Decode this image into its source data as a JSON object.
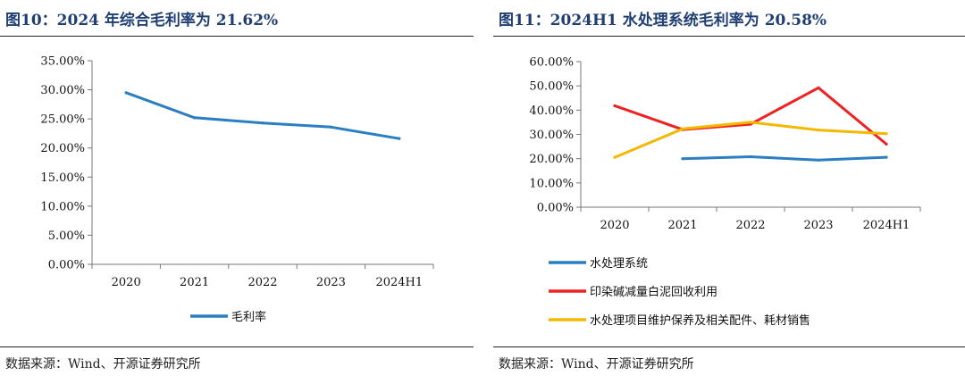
{
  "charts": [
    {
      "title": "图10：2024 年综合毛利率为 21.62%",
      "source": "数据来源：Wind、开源证券研究所"
    },
    {
      "title": "图11：2024H1 水处理系统毛利率为 20.58%",
      "source": "数据来源：Wind、开源证券研究所"
    }
  ],
  "chart_data": [
    {
      "type": "line",
      "categories": [
        "2020",
        "2021",
        "2022",
        "2023",
        "2024H1"
      ],
      "series": [
        {
          "name": "毛利率",
          "values": [
            29.5,
            25.2,
            24.3,
            23.6,
            21.62
          ],
          "color": "#2a7ec1"
        }
      ],
      "yticks": [
        "35.00%",
        "30.00%",
        "25.00%",
        "20.00%",
        "15.00%",
        "10.00%",
        "5.00%",
        "0.00%"
      ],
      "ylim": [
        0,
        35
      ],
      "grid": false,
      "legend": "bottom"
    },
    {
      "type": "line",
      "categories": [
        "2020",
        "2021",
        "2022",
        "2023",
        "2024H1"
      ],
      "series": [
        {
          "name": "水处理系统",
          "values": [
            null,
            20.0,
            20.8,
            19.4,
            20.58
          ],
          "color": "#2a7ec1"
        },
        {
          "name": "印染碱减量白泥回收利用",
          "values": [
            41.8,
            32.0,
            34.2,
            49.2,
            26.0
          ],
          "color": "#ee2222"
        },
        {
          "name": "水处理项目维护保养及相关配件、耗材销售",
          "values": [
            20.5,
            32.3,
            35.0,
            31.8,
            30.3
          ],
          "color": "#f5b800"
        }
      ],
      "yticks": [
        "60.00%",
        "50.00%",
        "40.00%",
        "30.00%",
        "20.00%",
        "10.00%",
        "0.00%"
      ],
      "ylim": [
        0,
        60
      ],
      "grid": false,
      "legend": "bottom"
    }
  ]
}
